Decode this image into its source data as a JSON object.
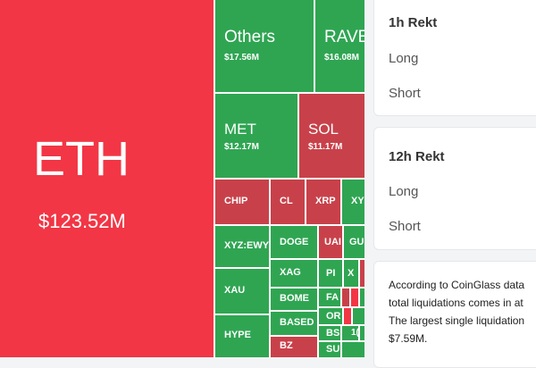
{
  "treemap": {
    "tiles": [
      {
        "id": "eth",
        "symbol": "ETH",
        "value": "$123.52M"
      },
      {
        "id": "others",
        "symbol": "Others",
        "value": "$17.56M"
      },
      {
        "id": "rave",
        "symbol": "RAVE",
        "value": "$16.08M"
      },
      {
        "id": "met",
        "symbol": "MET",
        "value": "$12.17M"
      },
      {
        "id": "sol",
        "symbol": "SOL",
        "value": "$11.17M"
      },
      {
        "id": "chip",
        "symbol": "CHIP"
      },
      {
        "id": "cl",
        "symbol": "CL"
      },
      {
        "id": "xrp",
        "symbol": "XRP"
      },
      {
        "id": "xyz",
        "symbol": "XYZ"
      },
      {
        "id": "xyzewy",
        "symbol": "XYZ:EWY"
      },
      {
        "id": "doge",
        "symbol": "DOGE"
      },
      {
        "id": "uai",
        "symbol": "UAI"
      },
      {
        "id": "gu",
        "symbol": "GU"
      },
      {
        "id": "xag",
        "symbol": "XAG"
      },
      {
        "id": "pi",
        "symbol": "PI"
      },
      {
        "id": "x",
        "symbol": "X"
      },
      {
        "id": "xau",
        "symbol": "XAU"
      },
      {
        "id": "bome",
        "symbol": "BOME"
      },
      {
        "id": "fa",
        "symbol": "FA"
      },
      {
        "id": "or",
        "symbol": "OR"
      },
      {
        "id": "hype",
        "symbol": "HYPE"
      },
      {
        "id": "based",
        "symbol": "BASED"
      },
      {
        "id": "bs",
        "symbol": "BS"
      },
      {
        "id": "bz",
        "symbol": "BZ"
      },
      {
        "id": "su",
        "symbol": "SU"
      },
      {
        "id": "n1",
        "symbol": "1("
      }
    ]
  },
  "panels": {
    "h1": {
      "title": "1h Rekt",
      "long": "Long",
      "short": "Short"
    },
    "h12": {
      "title": "12h Rekt",
      "long": "Long",
      "short": "Short"
    }
  },
  "note": {
    "line1": "According to CoinGlass data",
    "line2": "total liquidations comes in at",
    "line3": "The largest single liquidation",
    "line4": "$7.59M."
  }
}
